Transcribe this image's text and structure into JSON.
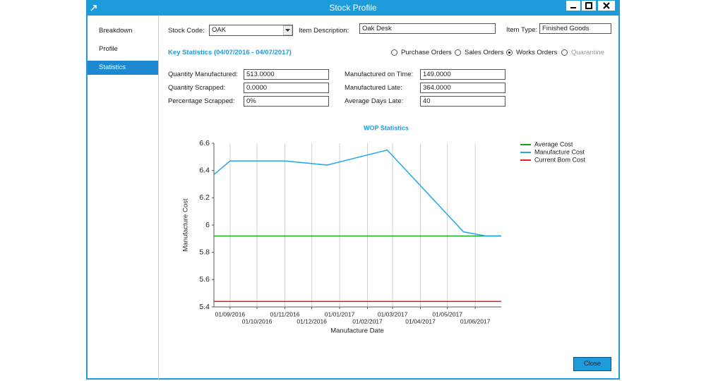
{
  "window": {
    "title": "Stock Profile"
  },
  "sidebar": {
    "items": [
      "Breakdown",
      "Profile",
      "Statistics"
    ],
    "selected": 2
  },
  "form": {
    "stock_code": {
      "label": "Stock Code:",
      "value": "OAK"
    },
    "item_description": {
      "label": "Item Description:",
      "value": "Oak Desk"
    },
    "item_type": {
      "label": "Item Type:",
      "value": "Finished Goods"
    },
    "key_statistics": "Key Statistics (04/07/2016 - 04/07/2017)",
    "order_types": {
      "options": [
        "Purchase Orders",
        "Sales Orders",
        "Works Orders",
        "Quarantine"
      ],
      "selected": 2,
      "disabled": 3
    },
    "stats": [
      {
        "label": "Quantity Manufactured:",
        "value": "513.0000"
      },
      {
        "label": "Quantity Scrapped:",
        "value": "0.0000"
      },
      {
        "label": "Percentage Scrapped:",
        "value": "0%"
      },
      {
        "label": "Manufactured on Time:",
        "value": "149.0000"
      },
      {
        "label": "Manufactured Late:",
        "value": "364.0000"
      },
      {
        "label": "Average Days Late:",
        "value": "40"
      }
    ]
  },
  "chart_data": {
    "type": "line",
    "title": "WOP Statistics",
    "x_label": "Manufacture Date",
    "y_label": "Manufacture Cost",
    "xlim": [
      "14/08/2016",
      "30/06/2017"
    ],
    "xticks": [
      "01/09/2016",
      "01/10/2016",
      "01/11/2016",
      "01/12/2016",
      "01/01/2017",
      "01/02/2017",
      "01/03/2017",
      "01/04/2017",
      "01/05/2017",
      "01/06/2017"
    ],
    "ylim": [
      5.4,
      6.6
    ],
    "yticks": [
      5.4,
      5.6,
      5.8,
      6,
      6.2,
      6.4,
      6.6
    ],
    "grid": "x",
    "legend": "right",
    "series": [
      {
        "name": "Average Cost",
        "color": "#1aa31a",
        "x": [
          "14/08/2016",
          "30/06/2017"
        ],
        "values": [
          5.92,
          5.92
        ]
      },
      {
        "name": "Manufacture Cost",
        "color": "#1ea8e8",
        "x": [
          "14/08/2016",
          "01/09/2016",
          "01/11/2016",
          "18/12/2016",
          "23/02/2017",
          "19/05/2017",
          "13/06/2017",
          "30/06/2017"
        ],
        "values": [
          6.37,
          6.47,
          6.47,
          6.44,
          6.55,
          5.95,
          5.92,
          5.92
        ]
      },
      {
        "name": "Current Bom Cost",
        "color": "#e82020",
        "x": [
          "14/08/2016",
          "30/06/2017"
        ],
        "values": [
          5.44,
          5.44
        ]
      }
    ]
  },
  "buttons": {
    "close": "Close"
  }
}
